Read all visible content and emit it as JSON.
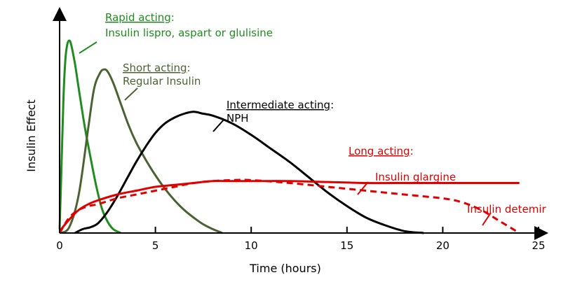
{
  "chart_data": {
    "type": "line",
    "title": "",
    "xlabel": "Time (hours)",
    "ylabel": "Insulin Effect",
    "xlim": [
      0,
      25
    ],
    "ylim": [
      0,
      1.0
    ],
    "x_ticks": [
      0,
      5,
      10,
      15,
      20,
      25
    ],
    "y_ticks_labeled": false,
    "grid": false,
    "legend": "none",
    "series": [
      {
        "key": "rapid",
        "color": "#1e8c1e",
        "dash": false,
        "x": [
          0,
          0.1,
          0.2,
          0.3,
          0.4,
          0.5,
          0.6,
          0.8,
          1.0,
          1.3,
          1.6,
          1.9,
          2.2,
          2.5,
          2.8,
          3.2
        ],
        "y": [
          0.02,
          0.35,
          0.7,
          0.9,
          0.98,
          1.0,
          0.98,
          0.88,
          0.75,
          0.56,
          0.4,
          0.25,
          0.13,
          0.06,
          0.02,
          0.0
        ]
      },
      {
        "key": "short",
        "color": "#4a6332",
        "dash": false,
        "x": [
          0,
          0.5,
          1.0,
          1.5,
          1.8,
          2.1,
          2.3,
          2.5,
          2.8,
          3.2,
          3.6,
          4.0,
          4.5,
          5.0,
          5.5,
          6.0,
          6.5,
          7.0,
          7.5,
          8.0,
          8.5
        ],
        "y": [
          0.0,
          0.03,
          0.2,
          0.55,
          0.75,
          0.83,
          0.85,
          0.84,
          0.78,
          0.67,
          0.56,
          0.47,
          0.38,
          0.3,
          0.23,
          0.17,
          0.12,
          0.08,
          0.045,
          0.02,
          0.0
        ]
      },
      {
        "key": "intermediate",
        "color": "#000000",
        "dash": false,
        "x": [
          0.8,
          1.2,
          1.6,
          2.0,
          2.5,
          3.0,
          3.5,
          4.0,
          4.5,
          5.0,
          5.5,
          6.0,
          6.5,
          7.0,
          7.5,
          8.0,
          9.0,
          10.0,
          11.0,
          12.0,
          13.0,
          14.0,
          15.0,
          16.0,
          17.0,
          18.0,
          19.0
        ],
        "y": [
          0.0,
          0.02,
          0.03,
          0.05,
          0.11,
          0.19,
          0.28,
          0.37,
          0.45,
          0.52,
          0.57,
          0.6,
          0.62,
          0.63,
          0.62,
          0.61,
          0.57,
          0.51,
          0.44,
          0.37,
          0.29,
          0.21,
          0.14,
          0.08,
          0.04,
          0.01,
          0.0
        ]
      },
      {
        "key": "glargine",
        "color": "#e00000",
        "dash": false,
        "x": [
          0,
          0.5,
          1.0,
          1.5,
          2.0,
          3.0,
          4.0,
          5.0,
          6.0,
          7.0,
          8.0,
          9.0,
          10.0,
          12.0,
          14.0,
          16.0,
          18.0,
          20.0,
          22.0,
          24.0
        ],
        "y": [
          0.01,
          0.07,
          0.12,
          0.15,
          0.17,
          0.2,
          0.22,
          0.24,
          0.25,
          0.26,
          0.27,
          0.27,
          0.27,
          0.27,
          0.265,
          0.26,
          0.26,
          0.26,
          0.26,
          0.26
        ]
      },
      {
        "key": "detemir",
        "color": "#e00000",
        "dash": true,
        "x": [
          0,
          0.5,
          1.0,
          1.5,
          2.0,
          3.0,
          4.0,
          5.0,
          6.0,
          7.0,
          8.0,
          9.0,
          10.0,
          12.0,
          14.0,
          16.0,
          18.0,
          20.0,
          21.0,
          22.0,
          23.0,
          24.0
        ],
        "y": [
          0.0,
          0.08,
          0.12,
          0.14,
          0.15,
          0.18,
          0.2,
          0.22,
          0.24,
          0.26,
          0.27,
          0.275,
          0.275,
          0.26,
          0.24,
          0.22,
          0.2,
          0.18,
          0.16,
          0.12,
          0.06,
          0.0
        ]
      }
    ],
    "annotations": [
      {
        "key": "rapid_title",
        "text": "Rapid acting",
        "suffix": ":",
        "color": "#1e8c1e",
        "underline": true
      },
      {
        "key": "rapid_names",
        "text": "Insulin lispro, aspart or glulisine",
        "color": "#1e8c1e"
      },
      {
        "key": "short_title",
        "text": "Short acting",
        "suffix": ":",
        "color": "#4a6332",
        "underline": true
      },
      {
        "key": "short_names",
        "text": "Regular Insulin",
        "color": "#4a6332"
      },
      {
        "key": "inter_title",
        "text": "Intermediate acting",
        "suffix": ":",
        "color": "#000000",
        "underline": true
      },
      {
        "key": "inter_names",
        "text": "NPH",
        "color": "#000000"
      },
      {
        "key": "long_title",
        "text": "Long acting",
        "suffix": ":",
        "color": "#e00000",
        "underline": true
      },
      {
        "key": "glargine_name",
        "text": "Insulin glargine",
        "color": "#e00000"
      },
      {
        "key": "detemir_name",
        "text": "Insulin detemir",
        "color": "#e00000"
      }
    ]
  }
}
